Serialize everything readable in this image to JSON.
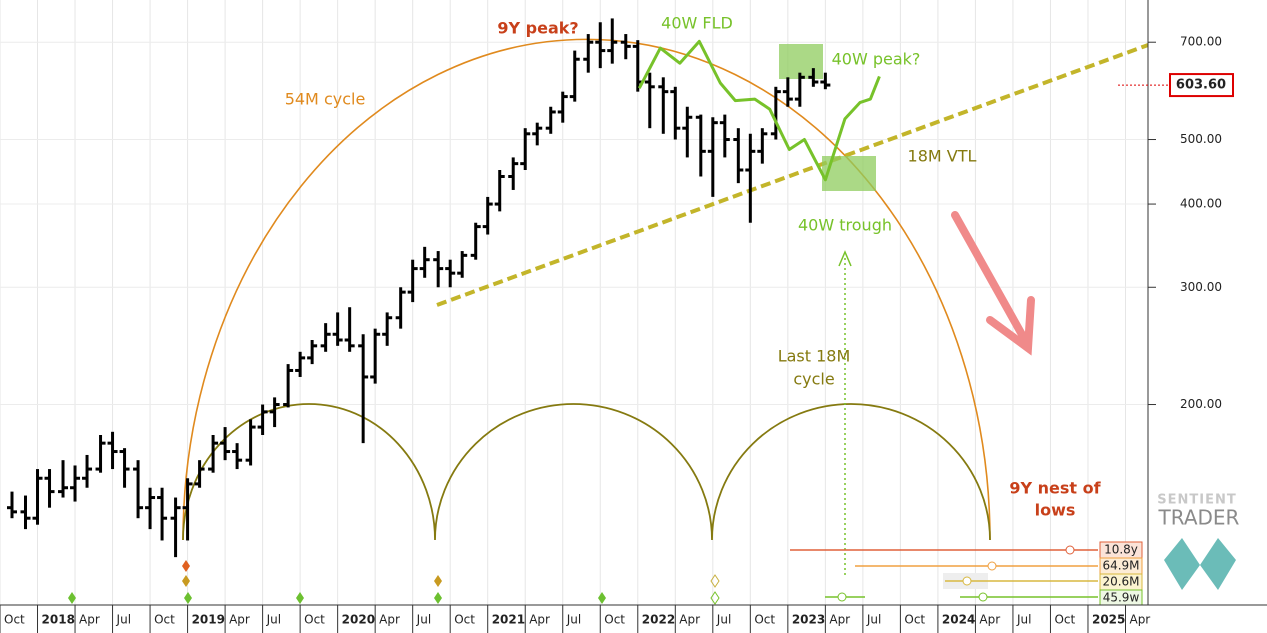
{
  "chart_data": {
    "type": "ohlc",
    "log_scale": true,
    "grid": true,
    "price_color": "#000000",
    "xlim": [
      2017.75,
      2025.4
    ],
    "ylim": [
      100,
      810
    ],
    "xticks": [
      {
        "value": 2017.75,
        "label": "Oct"
      },
      {
        "value": 2018.0,
        "label": "2018"
      },
      {
        "value": 2018.25,
        "label": "Apr"
      },
      {
        "value": 2018.5,
        "label": "Jul"
      },
      {
        "value": 2018.75,
        "label": "Oct"
      },
      {
        "value": 2019.0,
        "label": "2019"
      },
      {
        "value": 2019.25,
        "label": "Apr"
      },
      {
        "value": 2019.5,
        "label": "Jul"
      },
      {
        "value": 2019.75,
        "label": "Oct"
      },
      {
        "value": 2020.0,
        "label": "2020"
      },
      {
        "value": 2020.25,
        "label": "Apr"
      },
      {
        "value": 2020.5,
        "label": "Jul"
      },
      {
        "value": 2020.75,
        "label": "Oct"
      },
      {
        "value": 2021.0,
        "label": "2021"
      },
      {
        "value": 2021.25,
        "label": "Apr"
      },
      {
        "value": 2021.5,
        "label": "Jul"
      },
      {
        "value": 2021.75,
        "label": "Oct"
      },
      {
        "value": 2022.0,
        "label": "2022"
      },
      {
        "value": 2022.25,
        "label": "Apr"
      },
      {
        "value": 2022.5,
        "label": "Jul"
      },
      {
        "value": 2022.75,
        "label": "Oct"
      },
      {
        "value": 2023.0,
        "label": "2023"
      },
      {
        "value": 2023.25,
        "label": "Apr"
      },
      {
        "value": 2023.5,
        "label": "Jul"
      },
      {
        "value": 2023.75,
        "label": "Oct"
      },
      {
        "value": 2024.0,
        "label": "2024"
      },
      {
        "value": 2024.25,
        "label": "Apr"
      },
      {
        "value": 2024.5,
        "label": "Jul"
      },
      {
        "value": 2024.75,
        "label": "Oct"
      },
      {
        "value": 2025.0,
        "label": "2025"
      },
      {
        "value": 2025.25,
        "label": "Apr"
      }
    ],
    "yticks": [
      {
        "value": 700,
        "label": "700.00"
      },
      {
        "value": 500,
        "label": "500.00"
      },
      {
        "value": 400,
        "label": "400.00"
      },
      {
        "value": 300,
        "label": "300.00"
      },
      {
        "value": 200,
        "label": "200.00"
      }
    ],
    "x": [
      2017.83,
      2017.92,
      2018.0,
      2018.08,
      2018.17,
      2018.25,
      2018.33,
      2018.42,
      2018.5,
      2018.58,
      2018.67,
      2018.75,
      2018.83,
      2018.92,
      2019.0,
      2019.08,
      2019.17,
      2019.25,
      2019.33,
      2019.42,
      2019.5,
      2019.58,
      2019.67,
      2019.75,
      2019.83,
      2019.92,
      2020.0,
      2020.08,
      2020.17,
      2020.25,
      2020.33,
      2020.42,
      2020.5,
      2020.58,
      2020.67,
      2020.75,
      2020.83,
      2020.92,
      2021.0,
      2021.08,
      2021.17,
      2021.25,
      2021.33,
      2021.42,
      2021.5,
      2021.58,
      2021.67,
      2021.75,
      2021.83,
      2021.92,
      2022.0,
      2022.08,
      2022.17,
      2022.25,
      2022.33,
      2022.42,
      2022.5,
      2022.58,
      2022.67,
      2022.75,
      2022.83,
      2022.92,
      2023.0,
      2023.08,
      2023.17,
      2023.25
    ],
    "open": [
      140,
      138,
      135,
      155,
      148,
      150,
      155,
      160,
      175,
      170,
      160,
      140,
      145,
      135,
      140,
      152,
      160,
      175,
      170,
      165,
      185,
      195,
      200,
      225,
      235,
      245,
      255,
      250,
      245,
      220,
      255,
      270,
      295,
      320,
      330,
      320,
      315,
      335,
      370,
      400,
      440,
      460,
      510,
      520,
      550,
      580,
      660,
      700,
      680,
      700,
      690,
      610,
      600,
      590,
      520,
      540,
      480,
      530,
      500,
      450,
      480,
      510,
      590,
      575,
      620,
      610
    ],
    "high": [
      148,
      146,
      160,
      160,
      165,
      162,
      168,
      180,
      182,
      172,
      165,
      150,
      150,
      145,
      155,
      165,
      180,
      185,
      175,
      190,
      200,
      205,
      230,
      240,
      250,
      265,
      275,
      280,
      255,
      260,
      275,
      300,
      330,
      345,
      340,
      330,
      340,
      375,
      410,
      450,
      470,
      520,
      530,
      560,
      590,
      680,
      720,
      750,
      760,
      720,
      705,
      630,
      620,
      600,
      560,
      545,
      540,
      545,
      520,
      510,
      520,
      600,
      620,
      630,
      640,
      630
    ],
    "low": [
      135,
      130,
      132,
      140,
      145,
      143,
      150,
      158,
      160,
      150,
      135,
      130,
      125,
      118,
      125,
      150,
      158,
      165,
      160,
      162,
      180,
      185,
      198,
      220,
      230,
      240,
      245,
      240,
      175,
      215,
      245,
      260,
      285,
      310,
      300,
      300,
      310,
      330,
      360,
      390,
      420,
      450,
      490,
      510,
      530,
      570,
      630,
      640,
      650,
      660,
      590,
      520,
      510,
      500,
      470,
      440,
      410,
      470,
      430,
      375,
      460,
      500,
      560,
      560,
      600,
      595
    ],
    "close": [
      138,
      135,
      155,
      148,
      150,
      155,
      160,
      175,
      170,
      160,
      140,
      145,
      135,
      140,
      152,
      160,
      175,
      170,
      165,
      185,
      195,
      200,
      225,
      235,
      245,
      255,
      250,
      245,
      220,
      255,
      270,
      295,
      320,
      330,
      320,
      315,
      335,
      370,
      400,
      440,
      460,
      510,
      520,
      550,
      580,
      660,
      700,
      680,
      700,
      690,
      610,
      600,
      590,
      520,
      540,
      480,
      530,
      500,
      450,
      480,
      510,
      590,
      575,
      620,
      610,
      603.6
    ],
    "last_price": {
      "value": 603.6,
      "label": "603.60"
    },
    "series": [
      {
        "name": "40W FLD",
        "color": "#77c22a",
        "x": [
          2022.01,
          2022.15,
          2022.28,
          2022.41,
          2022.55,
          2022.65,
          2022.78,
          2022.88,
          2023.01,
          2023.11,
          2023.25,
          2023.38,
          2023.48,
          2023.55,
          2023.61
        ],
        "values": [
          597,
          686,
          651,
          702,
          608,
          572,
          575,
          555,
          483,
          500,
          435,
          537,
          568,
          575,
          622
        ]
      }
    ],
    "annotations": {
      "peak_9y": "9Y peak?",
      "cycle_54m": "54M cycle",
      "peak_40w": "40W peak?",
      "vtl_18m": "18M VTL",
      "trough_40w": "40W trough",
      "last_18m": [
        "Last 18M",
        "cycle"
      ],
      "nest_9y": [
        "9Y nest of",
        "lows"
      ]
    },
    "cycle_lengths": [
      "10.8y",
      "64.9M",
      "20.6M",
      "45.9w"
    ],
    "logo": [
      "SENTIENT",
      "TRADER"
    ]
  }
}
